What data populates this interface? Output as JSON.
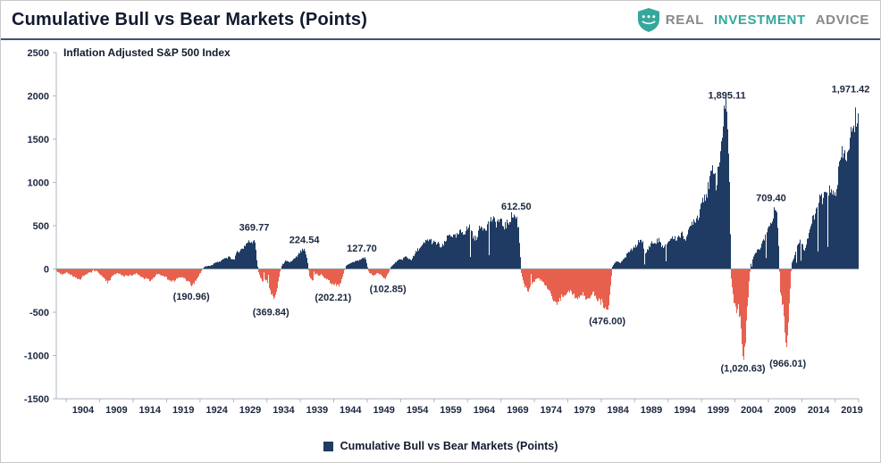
{
  "header": {
    "title": "Cumulative Bull vs Bear Markets (Points)",
    "brand": {
      "word1": "REAL",
      "word2": "INVESTMENT",
      "word3": "ADVICE"
    }
  },
  "chart_data": {
    "type": "bar",
    "title": "Inflation Adjusted S&P 500 Index",
    "legend_label": "Cumulative Bull vs Bear Markets (Points)",
    "legend_position": "bottom",
    "grid": false,
    "x_range": [
      1900,
      2020
    ],
    "ylim": [
      -1500,
      2500
    ],
    "y_ticks": [
      2500,
      2000,
      1500,
      1000,
      500,
      0,
      -500,
      -1000,
      -1500
    ],
    "x_ticks": [
      1904,
      1909,
      1914,
      1919,
      1924,
      1929,
      1934,
      1939,
      1944,
      1949,
      1954,
      1959,
      1964,
      1969,
      1974,
      1979,
      1984,
      1989,
      1994,
      1999,
      2004,
      2009,
      2014,
      2019
    ],
    "colors": {
      "positive": "#1F3B63",
      "negative": "#E7604E"
    },
    "annotations": [
      {
        "label": "(190.96)",
        "year": 1920.2,
        "value": -190.96
      },
      {
        "label": "369.77",
        "year": 1929.6,
        "value": 369.77
      },
      {
        "label": "(369.84)",
        "year": 1932.1,
        "value": -369.84
      },
      {
        "label": "224.54",
        "year": 1937.1,
        "value": 224.54
      },
      {
        "label": "(202.21)",
        "year": 1941.4,
        "value": -202.21
      },
      {
        "label": "127.70",
        "year": 1945.7,
        "value": 127.7
      },
      {
        "label": "(102.85)",
        "year": 1949.6,
        "value": -102.85
      },
      {
        "label": "612.50",
        "year": 1968.8,
        "value": 612.5
      },
      {
        "label": "(476.00)",
        "year": 1982.4,
        "value": -476.0
      },
      {
        "label": "1,895.11",
        "year": 2000.3,
        "value": 1895.11
      },
      {
        "label": "(1,020.63)",
        "year": 2002.7,
        "value": -1020.63
      },
      {
        "label": "709.40",
        "year": 2006.9,
        "value": 709.4
      },
      {
        "label": "(966.01)",
        "year": 2009.4,
        "value": -966.01
      },
      {
        "label": "1,971.42",
        "year": 2018.8,
        "value": 1971.42
      }
    ],
    "anchors": [
      [
        1900.0,
        -25
      ],
      [
        1900.8,
        -70
      ],
      [
        1901.5,
        -40
      ],
      [
        1902.5,
        -95
      ],
      [
        1903.5,
        -120
      ],
      [
        1904.3,
        -60
      ],
      [
        1905.2,
        -35
      ],
      [
        1906.0,
        -20
      ],
      [
        1906.8,
        -90
      ],
      [
        1907.6,
        -150
      ],
      [
        1908.4,
        -80
      ],
      [
        1909.2,
        -45
      ],
      [
        1910.0,
        -85
      ],
      [
        1911.0,
        -70
      ],
      [
        1912.0,
        -55
      ],
      [
        1913.0,
        -105
      ],
      [
        1914.0,
        -135
      ],
      [
        1915.0,
        -60
      ],
      [
        1916.0,
        -75
      ],
      [
        1917.0,
        -145
      ],
      [
        1918.0,
        -115
      ],
      [
        1919.0,
        -90
      ],
      [
        1920.2,
        -190.96
      ],
      [
        1921.2,
        -90
      ],
      [
        1921.7,
        -15
      ],
      [
        1922.0,
        20
      ],
      [
        1923.0,
        45
      ],
      [
        1924.0,
        75
      ],
      [
        1925.0,
        115
      ],
      [
        1926.0,
        135
      ],
      [
        1926.5,
        110
      ],
      [
        1927.0,
        185
      ],
      [
        1928.0,
        265
      ],
      [
        1929.0,
        320
      ],
      [
        1929.6,
        369.77
      ],
      [
        1929.9,
        120
      ],
      [
        1930.2,
        -40
      ],
      [
        1930.8,
        -150
      ],
      [
        1931.3,
        -120
      ],
      [
        1932.0,
        -260
      ],
      [
        1932.6,
        -369.84
      ],
      [
        1933.1,
        -160
      ],
      [
        1933.4,
        -30
      ],
      [
        1933.7,
        45
      ],
      [
        1934.2,
        95
      ],
      [
        1934.8,
        70
      ],
      [
        1935.5,
        115
      ],
      [
        1936.3,
        175
      ],
      [
        1937.0,
        224.54
      ],
      [
        1937.4,
        150
      ],
      [
        1937.8,
        -80
      ],
      [
        1938.3,
        -140
      ],
      [
        1938.7,
        -50
      ],
      [
        1939.2,
        -80
      ],
      [
        1939.6,
        -60
      ],
      [
        1940.2,
        -115
      ],
      [
        1941.0,
        -150
      ],
      [
        1941.6,
        -175
      ],
      [
        1942.2,
        -202.21
      ],
      [
        1942.7,
        -110
      ],
      [
        1943.0,
        -20
      ],
      [
        1943.3,
        35
      ],
      [
        1944.0,
        70
      ],
      [
        1945.0,
        100
      ],
      [
        1946.1,
        127.7
      ],
      [
        1946.4,
        60
      ],
      [
        1946.7,
        -45
      ],
      [
        1947.3,
        -70
      ],
      [
        1948.0,
        -50
      ],
      [
        1948.6,
        -80
      ],
      [
        1949.2,
        -102.85
      ],
      [
        1949.6,
        -50
      ],
      [
        1949.9,
        15
      ],
      [
        1950.5,
        60
      ],
      [
        1951.0,
        95
      ],
      [
        1952.0,
        135
      ],
      [
        1953.0,
        110
      ],
      [
        1954.0,
        210
      ],
      [
        1955.0,
        305
      ],
      [
        1956.0,
        335
      ],
      [
        1956.8,
        290
      ],
      [
        1957.5,
        250
      ],
      [
        1958.3,
        340
      ],
      [
        1959.0,
        400
      ],
      [
        1960.0,
        375
      ],
      [
        1961.0,
        455
      ],
      [
        1961.8,
        470
      ],
      [
        1962.5,
        350
      ],
      [
        1963.2,
        440
      ],
      [
        1964.0,
        505
      ],
      [
        1965.0,
        545
      ],
      [
        1966.0,
        575
      ],
      [
        1966.8,
        480
      ],
      [
        1967.5,
        560
      ],
      [
        1968.2,
        590
      ],
      [
        1968.8,
        612.5
      ],
      [
        1969.1,
        480
      ],
      [
        1969.5,
        -60
      ],
      [
        1970.0,
        -190
      ],
      [
        1970.6,
        -260
      ],
      [
        1971.2,
        -140
      ],
      [
        1972.0,
        -110
      ],
      [
        1972.8,
        -150
      ],
      [
        1973.5,
        -230
      ],
      [
        1974.4,
        -380
      ],
      [
        1975.0,
        -430
      ],
      [
        1975.6,
        -310
      ],
      [
        1976.3,
        -255
      ],
      [
        1977.0,
        -290
      ],
      [
        1978.0,
        -335
      ],
      [
        1978.8,
        -300
      ],
      [
        1979.5,
        -330
      ],
      [
        1980.3,
        -290
      ],
      [
        1981.0,
        -350
      ],
      [
        1981.7,
        -420
      ],
      [
        1982.4,
        -476
      ],
      [
        1982.8,
        -250
      ],
      [
        1983.1,
        30
      ],
      [
        1983.6,
        90
      ],
      [
        1984.3,
        65
      ],
      [
        1985.0,
        135
      ],
      [
        1986.0,
        225
      ],
      [
        1987.0,
        300
      ],
      [
        1987.6,
        340
      ],
      [
        1987.9,
        170
      ],
      [
        1988.4,
        220
      ],
      [
        1989.0,
        295
      ],
      [
        1990.0,
        335
      ],
      [
        1990.7,
        235
      ],
      [
        1991.3,
        310
      ],
      [
        1992.0,
        345
      ],
      [
        1993.0,
        385
      ],
      [
        1994.0,
        365
      ],
      [
        1995.0,
        510
      ],
      [
        1996.0,
        660
      ],
      [
        1997.0,
        860
      ],
      [
        1997.8,
        1050
      ],
      [
        1998.3,
        1150
      ],
      [
        1998.7,
        960
      ],
      [
        1999.2,
        1380
      ],
      [
        1999.7,
        1580
      ],
      [
        2000.2,
        1895.11
      ],
      [
        2000.5,
        1500
      ],
      [
        2000.9,
        -150
      ],
      [
        2001.3,
        -350
      ],
      [
        2001.7,
        -520
      ],
      [
        2001.9,
        -430
      ],
      [
        2002.2,
        -600
      ],
      [
        2002.7,
        -1020.63
      ],
      [
        2003.0,
        -850
      ],
      [
        2003.3,
        -450
      ],
      [
        2003.6,
        -120
      ],
      [
        2003.8,
        60
      ],
      [
        2004.3,
        160
      ],
      [
        2004.9,
        210
      ],
      [
        2005.5,
        300
      ],
      [
        2006.2,
        420
      ],
      [
        2006.8,
        540
      ],
      [
        2007.4,
        680
      ],
      [
        2007.6,
        709.4
      ],
      [
        2007.9,
        450
      ],
      [
        2008.2,
        -250
      ],
      [
        2008.7,
        -500
      ],
      [
        2008.95,
        -750
      ],
      [
        2009.15,
        -966.01
      ],
      [
        2009.4,
        -650
      ],
      [
        2009.7,
        -250
      ],
      [
        2009.9,
        60
      ],
      [
        2010.4,
        180
      ],
      [
        2010.9,
        280
      ],
      [
        2011.4,
        330
      ],
      [
        2011.8,
        230
      ],
      [
        2012.3,
        330
      ],
      [
        2013.0,
        560
      ],
      [
        2013.8,
        720
      ],
      [
        2014.5,
        800
      ],
      [
        2015.2,
        920
      ],
      [
        2015.8,
        830
      ],
      [
        2016.3,
        870
      ],
      [
        2017.0,
        1120
      ],
      [
        2017.8,
        1350
      ],
      [
        2018.1,
        1420
      ],
      [
        2018.4,
        1300
      ],
      [
        2018.8,
        1520
      ],
      [
        2019.0,
        1450
      ],
      [
        2019.4,
        1750
      ],
      [
        2019.9,
        1971.42
      ]
    ]
  }
}
